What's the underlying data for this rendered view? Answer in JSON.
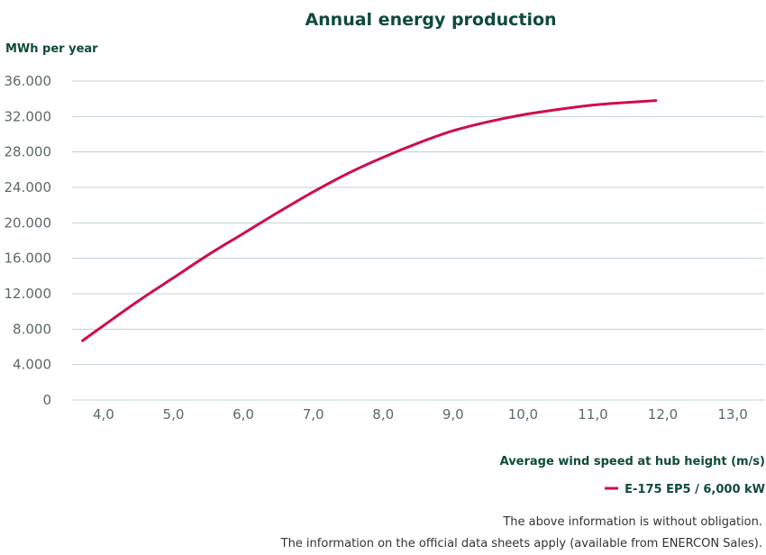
{
  "chart_data": {
    "type": "line",
    "title": "Annual energy production",
    "ylabel": "MWh per year",
    "xlabel": "Average wind speed at hub height (m/s)",
    "ylim": [
      0,
      36000
    ],
    "xlim": [
      3.55,
      13.45
    ],
    "grid": true,
    "legend_position": "bottom-right",
    "yticks": [
      0,
      4000,
      8000,
      12000,
      16000,
      20000,
      24000,
      28000,
      32000,
      36000
    ],
    "ytick_labels": [
      "0",
      "4.000",
      "8.000",
      "12.000",
      "16.000",
      "20.000",
      "24.000",
      "28.000",
      "32.000",
      "36.000"
    ],
    "xticks": [
      4,
      5,
      6,
      7,
      8,
      9,
      10,
      11,
      12,
      13
    ],
    "xtick_labels": [
      "4,0",
      "5,0",
      "6,0",
      "7,0",
      "8,0",
      "9,0",
      "10,0",
      "11,0",
      "12,0",
      "13,0"
    ],
    "series": [
      {
        "name": "E-175 EP5 / 6,000 kW",
        "color": "#cf0d4a",
        "x": [
          3.7,
          4.0,
          4.5,
          5.0,
          5.5,
          6.0,
          6.5,
          7.0,
          7.5,
          8.0,
          8.5,
          9.0,
          9.5,
          10.0,
          10.5,
          11.0,
          11.5,
          11.9
        ],
        "y": [
          6700,
          8400,
          11200,
          13800,
          16400,
          18800,
          21200,
          23500,
          25600,
          27400,
          29000,
          30400,
          31400,
          32200,
          32800,
          33300,
          33600,
          33800
        ]
      }
    ]
  },
  "notes": {
    "line1": "The above information is without obligation.",
    "line2": "The information on the official data sheets apply (available from ENERCON Sales)."
  }
}
